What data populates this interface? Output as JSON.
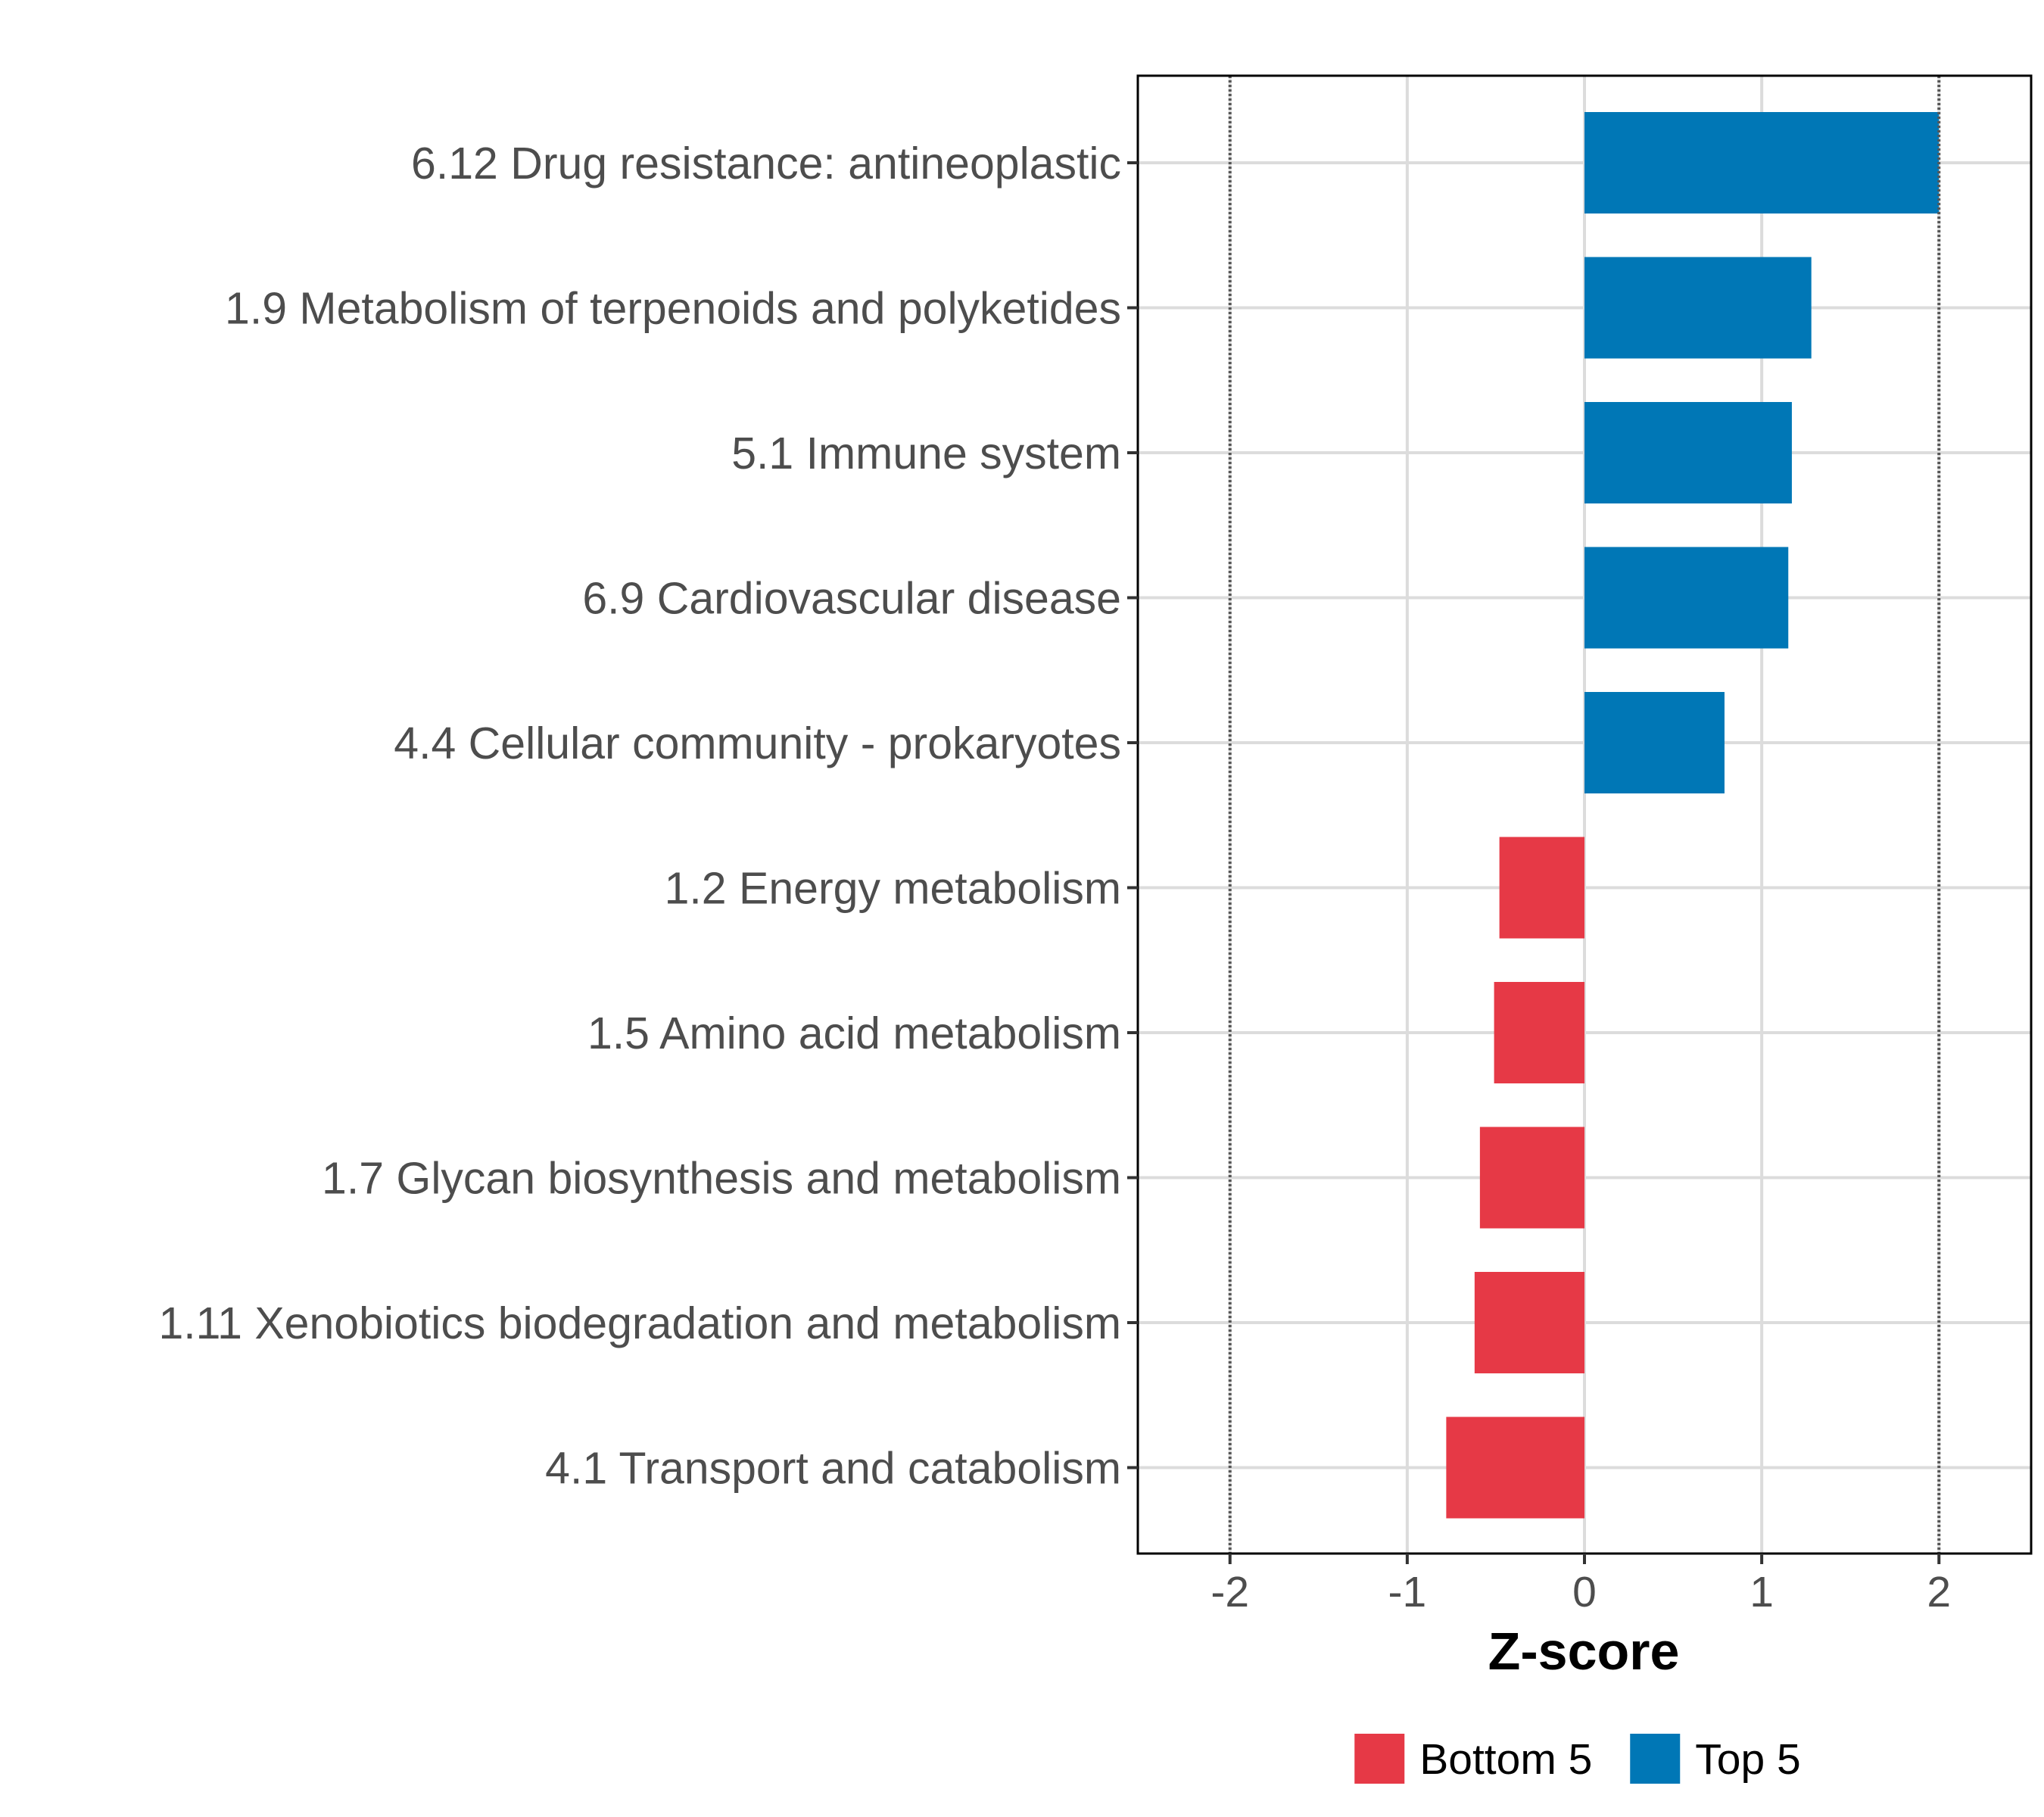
{
  "chart_data": {
    "type": "bar",
    "orientation": "horizontal",
    "title": "",
    "xlabel": "Z-score",
    "ylabel": "",
    "xlim": [
      -2.52,
      2.52
    ],
    "x_ticks": [
      -2,
      -1,
      0,
      1,
      2
    ],
    "x_tick_labels": [
      "-2",
      "-1",
      "0",
      "1",
      "2"
    ],
    "reference_lines": [
      -2,
      2
    ],
    "grid": true,
    "legend_position": "bottom",
    "categories": [
      "6.12 Drug resistance: antineoplastic",
      "1.9 Metabolism of terpenoids and polyketides",
      "5.1 Immune system",
      "6.9 Cardiovascular disease",
      "4.4 Cellular community - prokaryotes",
      "1.2 Energy metabolism",
      "1.5 Amino acid metabolism",
      "1.7 Glycan biosynthesis and metabolism",
      "1.11 Xenobiotics biodegradation and metabolism",
      "4.1 Transport and catabolism"
    ],
    "values": [
      2.0,
      1.28,
      1.17,
      1.15,
      0.79,
      -0.48,
      -0.51,
      -0.59,
      -0.62,
      -0.78
    ],
    "groups": [
      "Top 5",
      "Top 5",
      "Top 5",
      "Top 5",
      "Top 5",
      "Bottom 5",
      "Bottom 5",
      "Bottom 5",
      "Bottom 5",
      "Bottom 5"
    ],
    "legend": [
      {
        "label": "Bottom 5",
        "color": "#e63946"
      },
      {
        "label": "Top 5",
        "color": "#0077b6"
      }
    ]
  }
}
